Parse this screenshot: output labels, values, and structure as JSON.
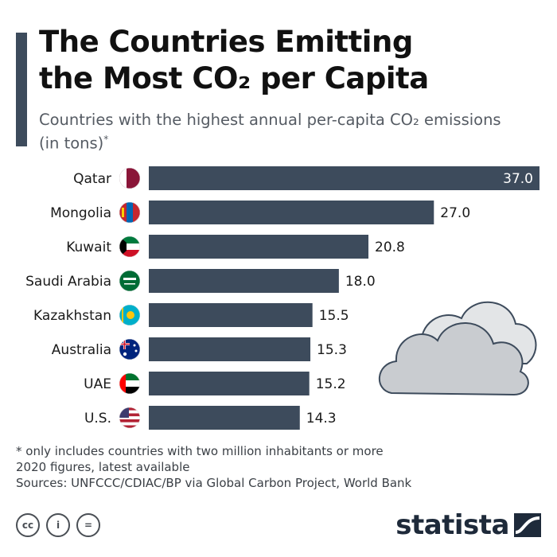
{
  "header": {
    "title_line1": "The Countries Emitting",
    "title_line2": "the Most CO₂ per Capita",
    "subtitle_line1": "Countries with the highest annual per-capita CO₂ emissions",
    "subtitle_line2": "(in tons)",
    "subtitle_mark": "*"
  },
  "chart_data": {
    "type": "bar",
    "orientation": "horizontal",
    "categories": [
      "Qatar",
      "Mongolia",
      "Kuwait",
      "Saudi Arabia",
      "Kazakhstan",
      "Australia",
      "UAE",
      "U.S."
    ],
    "values": [
      37.0,
      27.0,
      20.8,
      18.0,
      15.5,
      15.3,
      15.2,
      14.3
    ],
    "value_labels": [
      "37.0",
      "27.0",
      "20.8",
      "18.0",
      "15.5",
      "15.3",
      "15.2",
      "14.3"
    ],
    "flag_icons": [
      "qatar-flag-icon",
      "mongolia-flag-icon",
      "kuwait-flag-icon",
      "saudi-arabia-flag-icon",
      "kazakhstan-flag-icon",
      "australia-flag-icon",
      "uae-flag-icon",
      "us-flag-icon"
    ],
    "xlim": [
      0,
      37.0
    ],
    "grid": false,
    "bar_color": "#3d4b5c"
  },
  "footnotes": {
    "note1": "* only includes countries with two million inhabitants or more",
    "note2": "2020 figures, latest available",
    "sources": "Sources: UNFCCC/CDIAC/BP via Global Carbon Project, World Bank"
  },
  "license": {
    "cc": "cc",
    "by": "i",
    "nd": "="
  },
  "brand": {
    "name": "statista"
  },
  "colors": {
    "accent": "#3d4b5c",
    "text": "#111111",
    "subtitle": "#555b63"
  }
}
